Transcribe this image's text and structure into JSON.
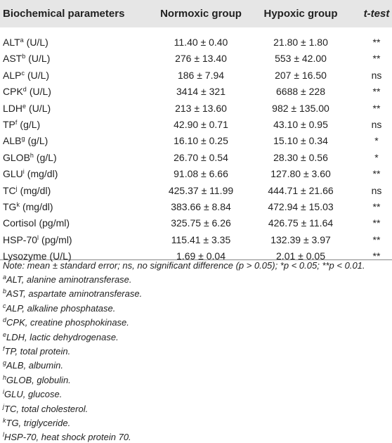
{
  "table": {
    "header": [
      "Biochemical parameters",
      "Normoxic group",
      "Hypoxic group",
      "t-test"
    ],
    "rows": [
      {
        "name": "ALT",
        "sup": "a",
        "unit": "(U/L)",
        "normoxic": "11.40 ± 0.40",
        "hypoxic": "21.80 ± 1.80",
        "ttest": "**"
      },
      {
        "name": "AST",
        "sup": "b",
        "unit": "(U/L)",
        "normoxic": "276 ± 13.40",
        "hypoxic": "553 ± 42.00",
        "ttest": "**"
      },
      {
        "name": "ALP",
        "sup": "c",
        "unit": "(U/L)",
        "normoxic": "186 ± 7.94",
        "hypoxic": "207 ± 16.50",
        "ttest": "ns"
      },
      {
        "name": "CPK",
        "sup": "d",
        "unit": "(U/L)",
        "normoxic": "3414 ± 321",
        "hypoxic": "6688 ± 228",
        "ttest": "**"
      },
      {
        "name": "LDH",
        "sup": "e",
        "unit": "(U/L)",
        "normoxic": "213 ± 13.60",
        "hypoxic": "982 ± 135.00",
        "ttest": "**"
      },
      {
        "name": "TP",
        "sup": "f",
        "unit": "(g/L)",
        "normoxic": "42.90 ± 0.71",
        "hypoxic": "43.10 ± 0.95",
        "ttest": "ns"
      },
      {
        "name": "ALB",
        "sup": "g",
        "unit": "(g/L)",
        "normoxic": "16.10 ± 0.25",
        "hypoxic": "15.10 ± 0.34",
        "ttest": "*"
      },
      {
        "name": "GLOB",
        "sup": "h",
        "unit": "(g/L)",
        "normoxic": "26.70 ± 0.54",
        "hypoxic": "28.30 ± 0.56",
        "ttest": "*"
      },
      {
        "name": "GLU",
        "sup": "i",
        "unit": "(mg/dl)",
        "normoxic": "91.08 ± 6.66",
        "hypoxic": "127.80 ± 3.60",
        "ttest": "**"
      },
      {
        "name": "TC",
        "sup": "j",
        "unit": "(mg/dl)",
        "normoxic": "425.37 ± 11.99",
        "hypoxic": "444.71 ± 21.66",
        "ttest": "ns"
      },
      {
        "name": "TG",
        "sup": "k",
        "unit": "(mg/dl)",
        "normoxic": "383.66 ± 8.84",
        "hypoxic": "472.94 ± 15.03",
        "ttest": "**"
      },
      {
        "name": "Cortisol",
        "unit": "(pg/ml)",
        "normoxic": "325.75 ± 6.26",
        "hypoxic": "426.75 ± 11.64",
        "ttest": "**"
      },
      {
        "name": "HSP-70",
        "sup": "l",
        "unit": "(pg/ml)",
        "normoxic": "115.41 ± 3.35",
        "hypoxic": "132.39 ± 3.97",
        "ttest": "**"
      },
      {
        "name": "Lysozyme",
        "unit": "(U/L)",
        "normoxic": "1.69 ± 0.04",
        "hypoxic": "2.01 ± 0.05",
        "ttest": "**"
      }
    ],
    "note": "Note: mean ± standard error; ns, no significant difference (p > 0.05); *p < 0.05; **p < 0.01.",
    "footnotes": [
      {
        "sup": "a",
        "text": "ALT, alanine aminotransferase."
      },
      {
        "sup": "b",
        "text": "AST, aspartate aminotransferase."
      },
      {
        "sup": "c",
        "text": "ALP, alkaline phosphatase."
      },
      {
        "sup": "d",
        "text": "CPK, creatine phosphokinase."
      },
      {
        "sup": "e",
        "text": "LDH, lactic dehydrogenase."
      },
      {
        "sup": "f",
        "text": "TP, total protein."
      },
      {
        "sup": "g",
        "text": "ALB, albumin."
      },
      {
        "sup": "h",
        "text": "GLOB, globulin."
      },
      {
        "sup": "i",
        "text": "GLU, glucose."
      },
      {
        "sup": "j",
        "text": "TC, total cholesterol."
      },
      {
        "sup": "k",
        "text": "TG, triglyceride."
      },
      {
        "sup": "l",
        "text": "HSP-70, heat shock protein 70."
      }
    ]
  }
}
